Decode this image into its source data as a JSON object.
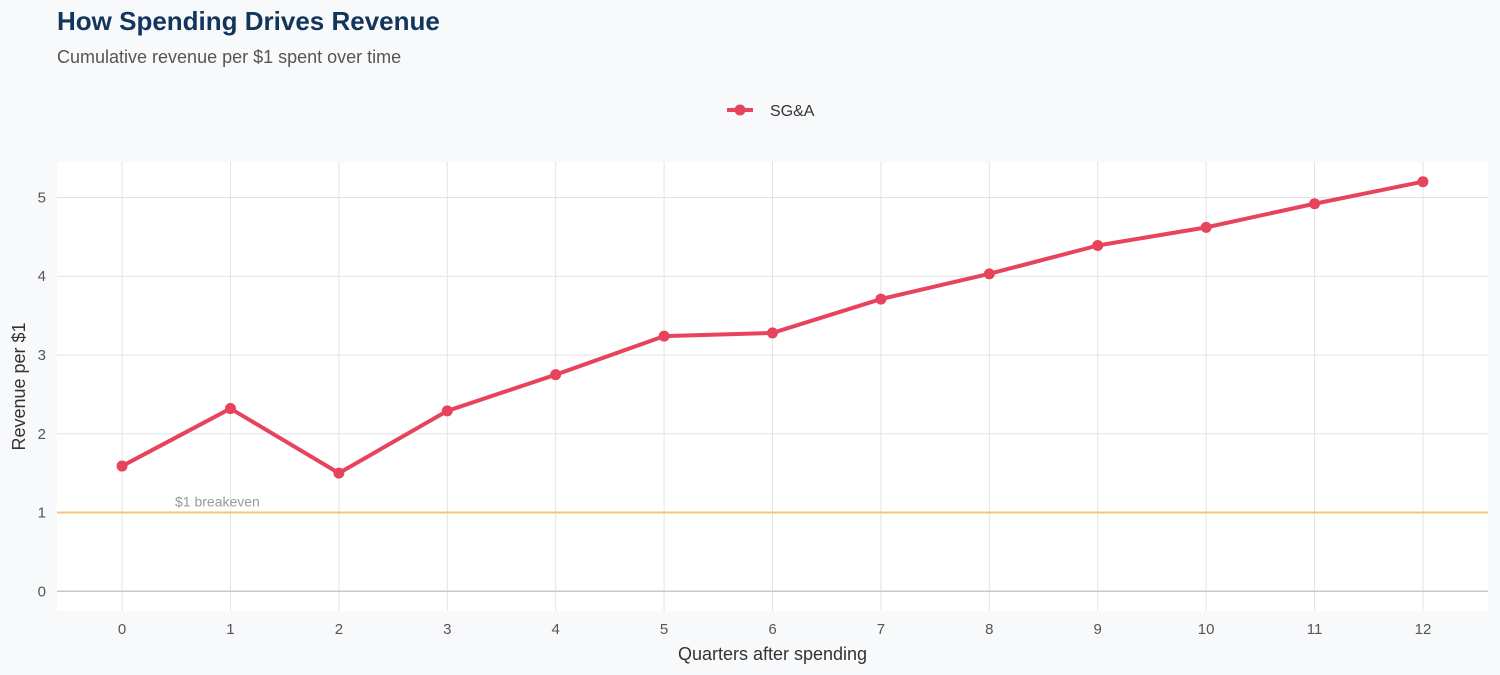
{
  "chart_data": {
    "type": "line",
    "title": "How Spending Drives Revenue",
    "subtitle": "Cumulative revenue per $1 spent over time",
    "xlabel": "Quarters after spending",
    "ylabel": "Revenue per $1",
    "x": [
      0,
      1,
      2,
      3,
      4,
      5,
      6,
      7,
      8,
      9,
      10,
      11,
      12
    ],
    "xlim": [
      -0.6,
      12.6
    ],
    "ylim": [
      -0.25,
      5.45
    ],
    "yticks": [
      0,
      1,
      2,
      3,
      4,
      5
    ],
    "grid": true,
    "legend_position": "top-center",
    "series": [
      {
        "name": "SG&A",
        "color": "#e8435c",
        "values": [
          1.59,
          2.32,
          1.5,
          2.29,
          2.75,
          3.24,
          3.28,
          3.71,
          4.03,
          4.39,
          4.62,
          4.92,
          5.2
        ]
      }
    ],
    "reference_line": {
      "y": 1,
      "label": "$1 breakeven",
      "color": "#f2c96d"
    }
  }
}
